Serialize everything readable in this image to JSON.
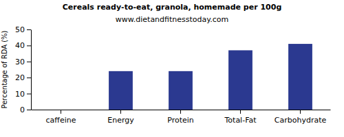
{
  "chart_data": {
    "type": "bar",
    "title": "Cereals ready-to-eat, granola, homemade per 100g",
    "subtitle": "www.dietandfitnesstoday.com",
    "y_label": "Percentage of RDA (%)",
    "categories": [
      "caffeine",
      "Energy",
      "Protein",
      "Total-Fat",
      "Carbohydrate"
    ],
    "values": [
      0,
      24,
      24,
      37,
      41
    ],
    "color": "#2b3990",
    "ylim": [
      0,
      50
    ],
    "yticks": [
      0,
      10,
      20,
      30,
      40,
      50
    ],
    "grid": false
  }
}
